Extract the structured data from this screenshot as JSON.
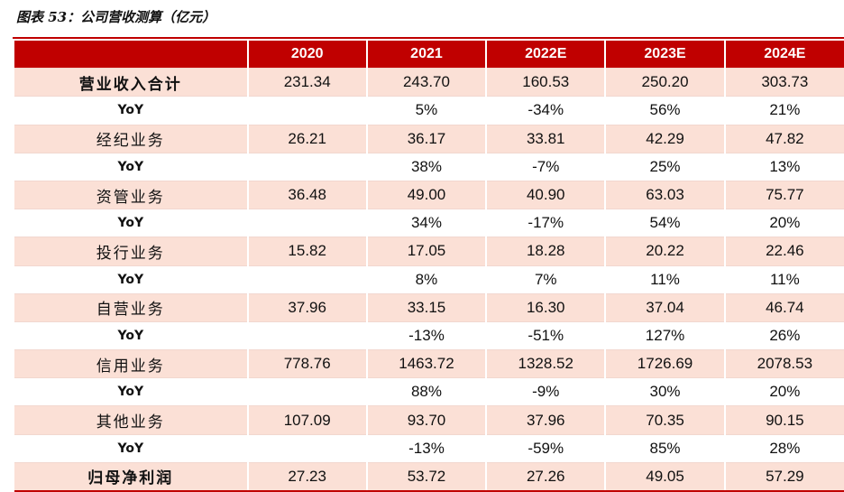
{
  "caption": "图表 53：公司营收测算（亿元）",
  "colors": {
    "header_bg": "#c00000",
    "main_row_bg": "#fbe0d6",
    "yoy_row_bg": "#ffffff"
  },
  "columns": [
    "",
    "2020",
    "2021",
    "2022E",
    "2023E",
    "2024E"
  ],
  "rows": [
    {
      "type": "main",
      "bold": true,
      "label": "营业收入合计",
      "values": [
        "231.34",
        "243.70",
        "160.53",
        "250.20",
        "303.73"
      ]
    },
    {
      "type": "yoy",
      "label": "YoY",
      "values": [
        "",
        "5%",
        "-34%",
        "56%",
        "21%"
      ]
    },
    {
      "type": "main",
      "bold": false,
      "label": "经纪业务",
      "values": [
        "26.21",
        "36.17",
        "33.81",
        "42.29",
        "47.82"
      ]
    },
    {
      "type": "yoy",
      "label": "YoY",
      "values": [
        "",
        "38%",
        "-7%",
        "25%",
        "13%"
      ]
    },
    {
      "type": "main",
      "bold": false,
      "label": "资管业务",
      "values": [
        "36.48",
        "49.00",
        "40.90",
        "63.03",
        "75.77"
      ]
    },
    {
      "type": "yoy",
      "label": "YoY",
      "values": [
        "",
        "34%",
        "-17%",
        "54%",
        "20%"
      ]
    },
    {
      "type": "main",
      "bold": false,
      "label": "投行业务",
      "values": [
        "15.82",
        "17.05",
        "18.28",
        "20.22",
        "22.46"
      ]
    },
    {
      "type": "yoy",
      "label": "YoY",
      "values": [
        "",
        "8%",
        "7%",
        "11%",
        "11%"
      ]
    },
    {
      "type": "main",
      "bold": false,
      "label": "自营业务",
      "values": [
        "37.96",
        "33.15",
        "16.30",
        "37.04",
        "46.74"
      ]
    },
    {
      "type": "yoy",
      "label": "YoY",
      "values": [
        "",
        "-13%",
        "-51%",
        "127%",
        "26%"
      ]
    },
    {
      "type": "main",
      "bold": false,
      "label": "信用业务",
      "values": [
        "778.76",
        "1463.72",
        "1328.52",
        "1726.69",
        "2078.53"
      ]
    },
    {
      "type": "yoy",
      "label": "YoY",
      "values": [
        "",
        "88%",
        "-9%",
        "30%",
        "20%"
      ]
    },
    {
      "type": "main",
      "bold": false,
      "label": "其他业务",
      "values": [
        "107.09",
        "93.70",
        "37.96",
        "70.35",
        "90.15"
      ]
    },
    {
      "type": "yoy",
      "label": "YoY",
      "values": [
        "",
        "-13%",
        "-59%",
        "85%",
        "28%"
      ]
    },
    {
      "type": "main",
      "bold": true,
      "label": "归母净利润",
      "values": [
        "27.23",
        "53.72",
        "27.26",
        "49.05",
        "57.29"
      ]
    }
  ]
}
